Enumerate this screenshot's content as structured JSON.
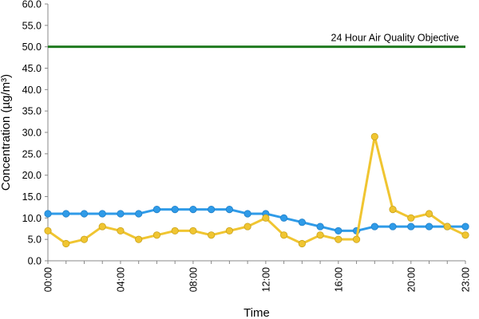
{
  "chart_data": {
    "type": "line",
    "xlabel": "Time",
    "ylabel": "Concentration (µg/m³)",
    "ylim": [
      0,
      60
    ],
    "yticks": [
      "0.0",
      "5.0",
      "10.0",
      "15.0",
      "20.0",
      "25.0",
      "30.0",
      "35.0",
      "40.0",
      "45.0",
      "50.0",
      "55.0",
      "60.0"
    ],
    "x": [
      "00:00",
      "01:00",
      "02:00",
      "03:00",
      "04:00",
      "05:00",
      "06:00",
      "07:00",
      "08:00",
      "09:00",
      "10:00",
      "11:00",
      "12:00",
      "13:00",
      "14:00",
      "15:00",
      "16:00",
      "17:00",
      "18:00",
      "19:00",
      "20:00",
      "21:00",
      "22:00",
      "23:00"
    ],
    "xtick_labels": [
      "00:00",
      "04:00",
      "08:00",
      "12:00",
      "16:00",
      "20:00",
      "23:00"
    ],
    "series": [
      {
        "color": "#2f9be8",
        "values": [
          11,
          11,
          11,
          11,
          11,
          11,
          12,
          12,
          12,
          12,
          12,
          11,
          11,
          10,
          9,
          8,
          7,
          7,
          8,
          8,
          8,
          8,
          8,
          8
        ]
      },
      {
        "color": "#f0c531",
        "values": [
          7,
          4,
          5,
          8,
          7,
          5,
          6,
          7,
          7,
          6,
          7,
          8,
          10,
          6,
          4,
          6,
          5,
          5,
          29,
          12,
          10,
          11,
          8,
          6
        ]
      }
    ],
    "reference_line": {
      "label": "24 Hour Air Quality Objective",
      "value": 50,
      "color": "#1f7a1f"
    },
    "grid": false,
    "legend": "none"
  }
}
